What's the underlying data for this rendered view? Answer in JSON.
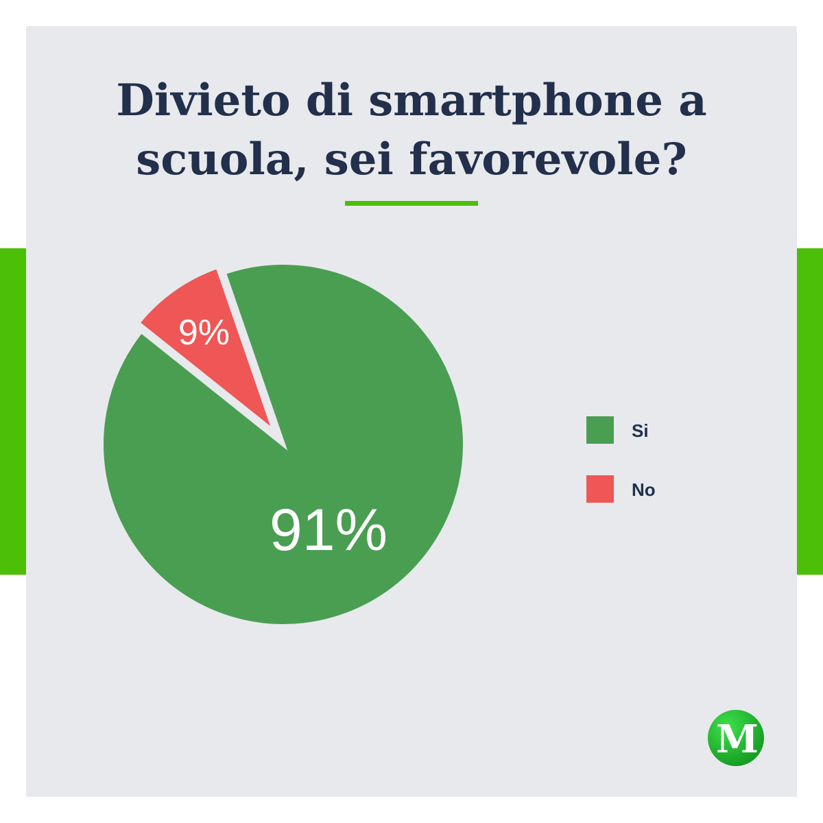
{
  "chart_data": {
    "type": "pie",
    "title": "Divieto di smartphone a scuola, sei favorevole?",
    "title_lines": [
      "Divieto di smartphone a",
      "scuola, sei favorevole?"
    ],
    "slices": [
      {
        "label": "Si",
        "value": 91,
        "value_label": "91%",
        "color": "#4a9e52",
        "exploded": false
      },
      {
        "label": "No",
        "value": 9,
        "value_label": "9%",
        "color": "#ef5656",
        "exploded": true
      }
    ],
    "legend": {
      "position": "right",
      "items": [
        "Si",
        "No"
      ]
    }
  },
  "colors": {
    "background": "#e8e9ed",
    "accent": "#4cbf08",
    "title": "#22304c"
  },
  "logo": {
    "letter": "M",
    "icon": "logo-m-icon"
  }
}
